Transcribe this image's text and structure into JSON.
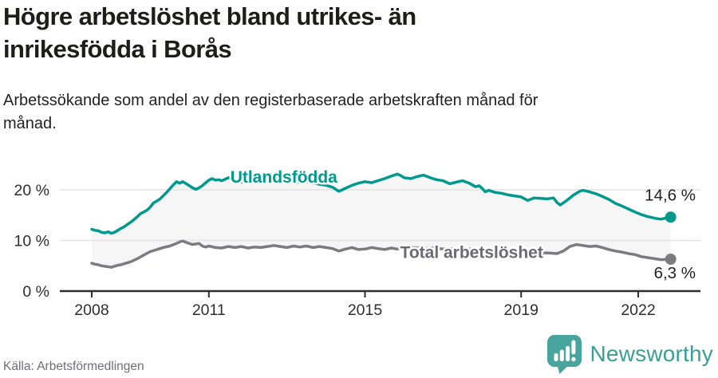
{
  "header": {
    "title_lines": [
      "Högre arbetslöshet bland utrikes- än",
      "inrikesfödda i Borås"
    ],
    "subtitle_lines": [
      "Arbetssökande som andel av den registerbaserade arbetskraften månad för",
      "månad."
    ]
  },
  "footer": {
    "source": "Källa: Arbetsförmedlingen",
    "logo_text": "Newsworthy"
  },
  "colors": {
    "series1": "#009a8c",
    "series2": "#7b7b80",
    "series2_label": "#6a6a72",
    "value_label": "#222222",
    "grid": "#e4e4e4",
    "axis": "#2e2e2e",
    "area_fill": "#f6f6f6",
    "logo_icon": "#47a59d",
    "logo_text": "#389f97"
  },
  "chart_data": {
    "type": "line",
    "title": "Högre arbetslöshet bland utrikes- än inrikesfödda i Borås",
    "subtitle": "Arbetssökande som andel av den registerbaserade arbetskraften månad för månad.",
    "source": "Källa: Arbetsförmedlingen",
    "x_range": [
      2008,
      2022.83
    ],
    "y_ticks": [
      {
        "value": 0,
        "label": "0 %"
      },
      {
        "value": 10,
        "label": "10 %"
      },
      {
        "value": 20,
        "label": "20 %"
      }
    ],
    "x_ticks": [
      {
        "value": 2008,
        "label": "2008"
      },
      {
        "value": 2011,
        "label": "2011"
      },
      {
        "value": 2015,
        "label": "2015"
      },
      {
        "value": 2019,
        "label": "2019"
      },
      {
        "value": 2022,
        "label": "2022"
      }
    ],
    "grid": true,
    "legend_position": "inline-labels",
    "area_between_series": true,
    "series": [
      {
        "name": "Utlandsfödda",
        "color": "#009a8c",
        "label_color": "#009a8c",
        "end_label": "14,6 %",
        "end_value": 14.6,
        "label_pos": {
          "x": 2011.55,
          "y": 22.5
        },
        "end_label_dy": -21,
        "points": [
          [
            2008.0,
            12.2
          ],
          [
            2008.08,
            12.0
          ],
          [
            2008.17,
            11.9
          ],
          [
            2008.25,
            11.6
          ],
          [
            2008.33,
            11.5
          ],
          [
            2008.42,
            11.7
          ],
          [
            2008.5,
            11.4
          ],
          [
            2008.58,
            11.6
          ],
          [
            2008.67,
            12.0
          ],
          [
            2008.75,
            12.4
          ],
          [
            2008.83,
            12.7
          ],
          [
            2008.92,
            13.2
          ],
          [
            2009.0,
            13.6
          ],
          [
            2009.08,
            14.1
          ],
          [
            2009.17,
            14.7
          ],
          [
            2009.25,
            15.3
          ],
          [
            2009.33,
            15.6
          ],
          [
            2009.42,
            16.0
          ],
          [
            2009.5,
            16.6
          ],
          [
            2009.58,
            17.4
          ],
          [
            2009.67,
            17.8
          ],
          [
            2009.75,
            18.2
          ],
          [
            2009.83,
            18.8
          ],
          [
            2009.92,
            19.5
          ],
          [
            2010.0,
            20.2
          ],
          [
            2010.08,
            20.9
          ],
          [
            2010.17,
            21.6
          ],
          [
            2010.25,
            21.3
          ],
          [
            2010.33,
            21.6
          ],
          [
            2010.42,
            21.2
          ],
          [
            2010.5,
            20.8
          ],
          [
            2010.58,
            20.4
          ],
          [
            2010.67,
            20.1
          ],
          [
            2010.75,
            20.4
          ],
          [
            2010.83,
            20.8
          ],
          [
            2010.92,
            21.4
          ],
          [
            2011.0,
            21.9
          ],
          [
            2011.08,
            22.2
          ],
          [
            2011.17,
            21.9
          ],
          [
            2011.25,
            22.0
          ],
          [
            2011.33,
            21.8
          ],
          [
            2011.42,
            22.1
          ],
          [
            2011.5,
            22.4
          ],
          [
            2011.58,
            22.2
          ],
          [
            2011.67,
            21.9
          ],
          [
            2011.75,
            21.7
          ],
          [
            2011.83,
            21.5
          ],
          [
            2011.92,
            21.6
          ],
          [
            2012.0,
            21.8
          ],
          [
            2012.17,
            21.6
          ],
          [
            2012.33,
            21.9
          ],
          [
            2012.5,
            21.7
          ],
          [
            2012.67,
            21.5
          ],
          [
            2012.83,
            21.7
          ],
          [
            2013.0,
            21.5
          ],
          [
            2013.17,
            21.7
          ],
          [
            2013.33,
            21.4
          ],
          [
            2013.5,
            21.6
          ],
          [
            2013.67,
            21.3
          ],
          [
            2013.83,
            21.1
          ],
          [
            2014.0,
            20.9
          ],
          [
            2014.17,
            20.5
          ],
          [
            2014.33,
            19.7
          ],
          [
            2014.42,
            20.0
          ],
          [
            2014.5,
            20.3
          ],
          [
            2014.67,
            20.9
          ],
          [
            2014.83,
            21.3
          ],
          [
            2015.0,
            21.6
          ],
          [
            2015.17,
            21.4
          ],
          [
            2015.33,
            21.8
          ],
          [
            2015.5,
            22.2
          ],
          [
            2015.67,
            22.7
          ],
          [
            2015.83,
            23.1
          ],
          [
            2015.92,
            22.8
          ],
          [
            2016.0,
            22.4
          ],
          [
            2016.17,
            22.2
          ],
          [
            2016.33,
            22.6
          ],
          [
            2016.5,
            22.9
          ],
          [
            2016.67,
            22.4
          ],
          [
            2016.83,
            22.0
          ],
          [
            2017.0,
            21.8
          ],
          [
            2017.17,
            21.2
          ],
          [
            2017.33,
            21.5
          ],
          [
            2017.5,
            21.8
          ],
          [
            2017.67,
            21.3
          ],
          [
            2017.83,
            20.6
          ],
          [
            2017.92,
            20.8
          ],
          [
            2018.0,
            20.3
          ],
          [
            2018.08,
            19.6
          ],
          [
            2018.17,
            19.9
          ],
          [
            2018.33,
            19.5
          ],
          [
            2018.5,
            19.3
          ],
          [
            2018.67,
            19.0
          ],
          [
            2018.83,
            18.8
          ],
          [
            2019.0,
            18.6
          ],
          [
            2019.17,
            17.9
          ],
          [
            2019.33,
            18.4
          ],
          [
            2019.5,
            18.3
          ],
          [
            2019.67,
            18.2
          ],
          [
            2019.83,
            18.4
          ],
          [
            2019.92,
            17.5
          ],
          [
            2020.0,
            17.0
          ],
          [
            2020.17,
            17.9
          ],
          [
            2020.33,
            18.9
          ],
          [
            2020.5,
            19.7
          ],
          [
            2020.58,
            19.9
          ],
          [
            2020.75,
            19.6
          ],
          [
            2020.92,
            19.2
          ],
          [
            2021.08,
            18.7
          ],
          [
            2021.25,
            18.1
          ],
          [
            2021.42,
            17.3
          ],
          [
            2021.58,
            16.8
          ],
          [
            2021.75,
            16.2
          ],
          [
            2021.92,
            15.6
          ],
          [
            2022.08,
            15.1
          ],
          [
            2022.25,
            14.7
          ],
          [
            2022.42,
            14.4
          ],
          [
            2022.58,
            14.2
          ],
          [
            2022.83,
            14.6
          ]
        ]
      },
      {
        "name": "Total arbetslöshet",
        "color": "#7b7b80",
        "label_color": "#6a6a72",
        "end_label": "6,3 %",
        "end_value": 6.3,
        "label_pos": {
          "x": 2015.9,
          "y": 7.6
        },
        "end_label_dy": 24,
        "points": [
          [
            2008.0,
            5.5
          ],
          [
            2008.08,
            5.3
          ],
          [
            2008.17,
            5.2
          ],
          [
            2008.25,
            5.0
          ],
          [
            2008.33,
            4.9
          ],
          [
            2008.42,
            4.8
          ],
          [
            2008.5,
            4.7
          ],
          [
            2008.58,
            4.9
          ],
          [
            2008.67,
            5.1
          ],
          [
            2008.75,
            5.2
          ],
          [
            2008.83,
            5.4
          ],
          [
            2008.92,
            5.6
          ],
          [
            2009.0,
            5.8
          ],
          [
            2009.17,
            6.4
          ],
          [
            2009.33,
            7.1
          ],
          [
            2009.5,
            7.8
          ],
          [
            2009.67,
            8.2
          ],
          [
            2009.83,
            8.6
          ],
          [
            2010.0,
            8.9
          ],
          [
            2010.17,
            9.4
          ],
          [
            2010.25,
            9.7
          ],
          [
            2010.33,
            9.9
          ],
          [
            2010.42,
            9.6
          ],
          [
            2010.5,
            9.4
          ],
          [
            2010.58,
            9.2
          ],
          [
            2010.67,
            9.3
          ],
          [
            2010.75,
            9.4
          ],
          [
            2010.83,
            8.9
          ],
          [
            2010.92,
            8.7
          ],
          [
            2011.0,
            8.9
          ],
          [
            2011.17,
            8.6
          ],
          [
            2011.33,
            8.5
          ],
          [
            2011.5,
            8.8
          ],
          [
            2011.67,
            8.6
          ],
          [
            2011.83,
            8.8
          ],
          [
            2012.0,
            8.5
          ],
          [
            2012.17,
            8.7
          ],
          [
            2012.33,
            8.6
          ],
          [
            2012.5,
            8.8
          ],
          [
            2012.67,
            9.0
          ],
          [
            2012.83,
            8.8
          ],
          [
            2013.0,
            8.6
          ],
          [
            2013.17,
            8.9
          ],
          [
            2013.33,
            8.7
          ],
          [
            2013.5,
            8.9
          ],
          [
            2013.67,
            8.6
          ],
          [
            2013.83,
            8.8
          ],
          [
            2014.0,
            8.6
          ],
          [
            2014.17,
            8.4
          ],
          [
            2014.33,
            7.9
          ],
          [
            2014.5,
            8.3
          ],
          [
            2014.67,
            8.6
          ],
          [
            2014.83,
            8.2
          ],
          [
            2015.0,
            8.3
          ],
          [
            2015.17,
            8.6
          ],
          [
            2015.33,
            8.4
          ],
          [
            2015.5,
            8.2
          ],
          [
            2015.67,
            8.5
          ],
          [
            2015.83,
            8.3
          ],
          [
            2016.0,
            8.4
          ],
          [
            2016.25,
            8.6
          ],
          [
            2016.5,
            8.4
          ],
          [
            2016.75,
            8.5
          ],
          [
            2017.0,
            8.3
          ],
          [
            2017.25,
            8.4
          ],
          [
            2017.5,
            8.2
          ],
          [
            2017.75,
            8.3
          ],
          [
            2018.0,
            8.1
          ],
          [
            2018.25,
            8.2
          ],
          [
            2018.5,
            8.0
          ],
          [
            2018.75,
            7.9
          ],
          [
            2019.0,
            7.8
          ],
          [
            2019.25,
            7.7
          ],
          [
            2019.5,
            7.6
          ],
          [
            2019.75,
            7.5
          ],
          [
            2019.92,
            7.4
          ],
          [
            2020.08,
            7.9
          ],
          [
            2020.25,
            8.8
          ],
          [
            2020.42,
            9.2
          ],
          [
            2020.58,
            9.0
          ],
          [
            2020.75,
            8.8
          ],
          [
            2020.92,
            8.9
          ],
          [
            2021.08,
            8.6
          ],
          [
            2021.25,
            8.2
          ],
          [
            2021.42,
            7.9
          ],
          [
            2021.58,
            7.7
          ],
          [
            2021.75,
            7.4
          ],
          [
            2021.92,
            7.2
          ],
          [
            2022.08,
            6.8
          ],
          [
            2022.25,
            6.6
          ],
          [
            2022.42,
            6.4
          ],
          [
            2022.58,
            6.2
          ],
          [
            2022.83,
            6.3
          ]
        ]
      }
    ]
  }
}
